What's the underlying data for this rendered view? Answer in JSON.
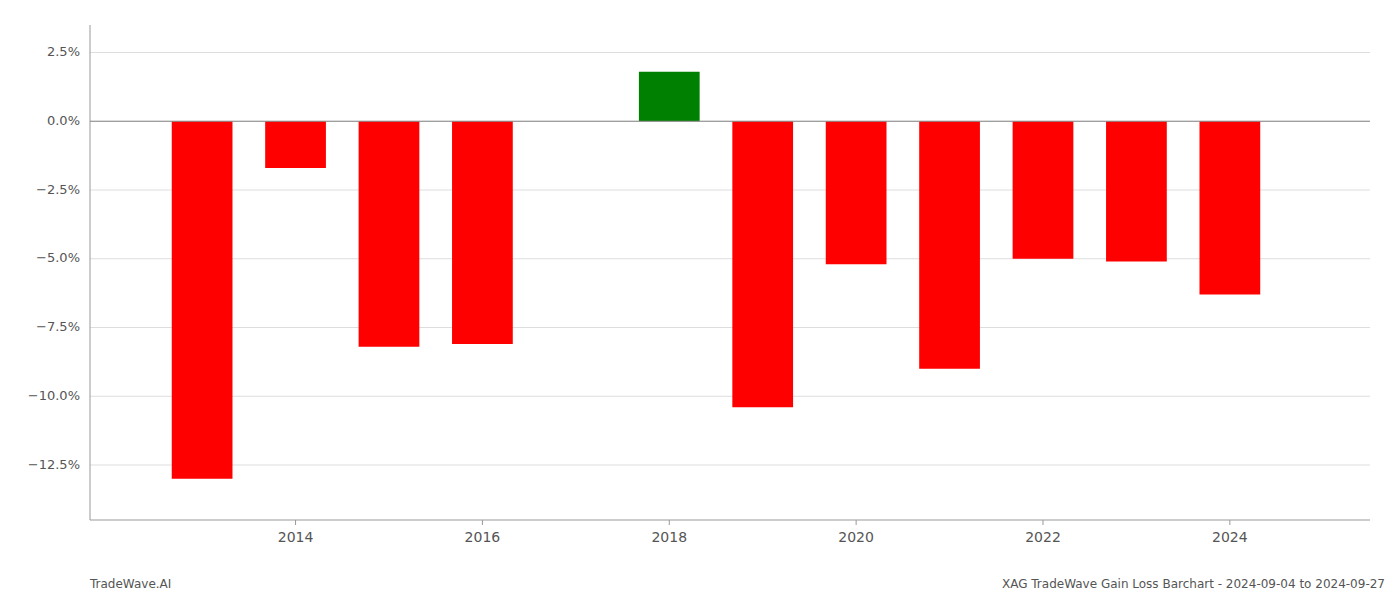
{
  "chart_data": {
    "type": "bar",
    "x": [
      2013,
      2014,
      2015,
      2016,
      2018,
      2019,
      2020,
      2021,
      2022,
      2023,
      2024
    ],
    "values": [
      -13.0,
      -1.7,
      -8.2,
      -8.1,
      1.8,
      -10.4,
      -5.2,
      -9.0,
      -5.0,
      -5.1,
      -6.3
    ],
    "colors": [
      "#ff0000",
      "#ff0000",
      "#ff0000",
      "#ff0000",
      "#008000",
      "#ff0000",
      "#ff0000",
      "#ff0000",
      "#ff0000",
      "#ff0000",
      "#ff0000"
    ],
    "xlim": [
      2011.8,
      2025.5
    ],
    "xticks": [
      2014,
      2016,
      2018,
      2020,
      2022,
      2024
    ],
    "ylim": [
      -14.5,
      3.5
    ],
    "yticks": [
      {
        "value": -12.5,
        "label": "−12.5%"
      },
      {
        "value": -10.0,
        "label": "−10.0%"
      },
      {
        "value": -7.5,
        "label": "−7.5%"
      },
      {
        "value": -5.0,
        "label": "−5.0%"
      },
      {
        "value": -2.5,
        "label": "−2.5%"
      },
      {
        "value": 0.0,
        "label": "0.0%"
      },
      {
        "value": 2.5,
        "label": "2.5%"
      }
    ],
    "grid": true,
    "annotations": [
      "TradeWave.AI",
      "XAG TradeWave Gain Loss Barchart - 2024-09-04 to 2024-09-27"
    ]
  }
}
